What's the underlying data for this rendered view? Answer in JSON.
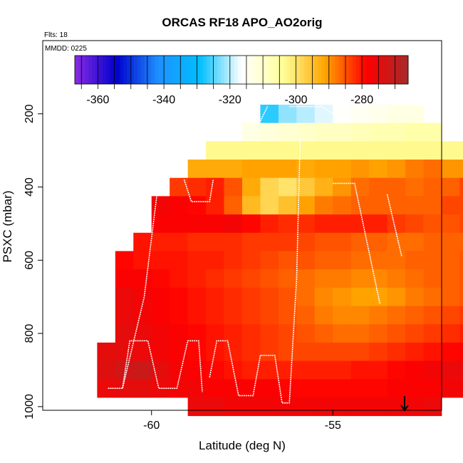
{
  "chart_data": {
    "type": "heatmap",
    "title": "ORCAS RF18 APO_AO2orig",
    "subtitle": "Flts: 18",
    "annotation": "MMDD: 0225",
    "xlabel": "Latitude (deg N)",
    "ylabel": "PSXC (mbar)",
    "xlim": [
      -63.0,
      -52.0
    ],
    "ylim": [
      1010,
      0
    ],
    "x_ticks": [
      -60,
      -55
    ],
    "x_tick_labels": [
      "-60",
      "-55"
    ],
    "y_ticks": [
      200,
      400,
      600,
      800,
      1000
    ],
    "y_tick_labels": [
      "200",
      "400",
      "600",
      "800",
      "1000"
    ],
    "colorbar": {
      "range": [
        -367,
        -266
      ],
      "ticks": [
        -360,
        -340,
        -320,
        -300,
        -280
      ],
      "tick_labels": [
        "-360",
        "-340",
        "-320",
        "-300",
        "-280"
      ],
      "placement": "top-inside",
      "colors": [
        "#8a2be2",
        "#0000cd",
        "#1e90ff",
        "#00bfff",
        "#ffffff",
        "#ffff99",
        "#ffa500",
        "#ff0000",
        "#a52a2a"
      ]
    },
    "grid": false,
    "cell_width_deg": 0.5,
    "cell_height_mbar": 50,
    "rows": [
      {
        "p": 200,
        "x0": -57.0,
        "values": [
          -327,
          -322,
          -320,
          -318,
          -316,
          -315,
          -314,
          -313,
          -313
        ]
      },
      {
        "p": 250,
        "x0": -57.5,
        "values": [
          -313,
          -312,
          -311,
          -310,
          -309,
          -309,
          -308,
          -307,
          -307,
          -306,
          -306
        ]
      },
      {
        "p": 300,
        "x0": -58.5,
        "values": [
          -303,
          -303,
          -303,
          -303,
          -303,
          -303,
          -303,
          -303,
          -303,
          -303,
          -303,
          -303,
          -303,
          -303,
          -303,
          -303
        ]
      },
      {
        "p": 350,
        "x0": -59.0,
        "values": [
          -292,
          -292,
          -292,
          -291,
          -291,
          -291,
          -292,
          -291,
          -291,
          -290,
          -291,
          -290,
          -288,
          -287,
          -290,
          -290,
          -290,
          -290,
          -290,
          -290,
          -290
        ]
      },
      {
        "p": 400,
        "x0": -59.5,
        "values": [
          -283,
          -282,
          -281,
          -285,
          -292,
          -298,
          -300,
          -296,
          -293,
          -290,
          -287,
          -286,
          -286,
          -287,
          -286,
          -286,
          -284,
          -283,
          -284,
          -284,
          -286,
          -287,
          -285,
          -283,
          -280,
          -282
        ]
      },
      {
        "p": 450,
        "x0": -60.0,
        "values": [
          -277,
          -278,
          -279,
          -281,
          -286,
          -294,
          -298,
          -295,
          -291,
          -288,
          -287,
          -286,
          -286,
          -286,
          -286,
          -286,
          -284,
          -284,
          -285,
          -286,
          -287,
          -286,
          -287,
          -287,
          -285,
          -284,
          -283
        ]
      },
      {
        "p": 500,
        "x0": -60.0,
        "values": [
          -278,
          -278,
          -278,
          -278,
          -277,
          -279,
          -281,
          -282,
          -282,
          -281,
          -281,
          -281,
          -281,
          -283,
          -284,
          -285,
          -285,
          -284,
          -284,
          -284,
          -284,
          -283,
          -282,
          -282,
          -281,
          -280,
          -279
        ]
      },
      {
        "p": 550,
        "x0": -60.5,
        "values": [
          -280,
          -281,
          -281,
          -282,
          -282,
          -282,
          -283,
          -283,
          -283,
          -284,
          -285,
          -285,
          -286,
          -286,
          -287,
          -287,
          -286,
          -286,
          -286,
          -286,
          -286,
          -285,
          -285,
          -284,
          -283,
          -282,
          -281,
          -279,
          -279
        ]
      },
      {
        "p": 600,
        "x0": -61.0,
        "values": [
          -279,
          -280,
          -280,
          -280,
          -281,
          -281,
          -282,
          -283,
          -284,
          -285,
          -285,
          -286,
          -286,
          -287,
          -287,
          -287,
          -286,
          -286,
          -286,
          -285,
          -285,
          -284,
          -283,
          -283,
          -282,
          -281,
          -280,
          -279,
          -279,
          -279,
          -279
        ]
      },
      {
        "p": 650,
        "x0": -61.0,
        "values": [
          -278,
          -278,
          -279,
          -280,
          -281,
          -282,
          -283,
          -284,
          -285,
          -286,
          -287,
          -288,
          -288,
          -289,
          -289,
          -288,
          -287,
          -286,
          -286,
          -285,
          -285,
          -284,
          -283,
          -282,
          -281,
          -280,
          -279,
          -279,
          -279,
          -278,
          -278
        ]
      },
      {
        "p": 700,
        "x0": -61.0,
        "values": [
          -276,
          -277,
          -278,
          -279,
          -280,
          -281,
          -282,
          -283,
          -284,
          -285,
          -287,
          -289,
          -290,
          -291,
          -291,
          -290,
          -288,
          -287,
          -286,
          -285,
          -284,
          -283,
          -282,
          -281,
          -280,
          -279,
          -278,
          -278,
          -277,
          -277
        ]
      },
      {
        "p": 750,
        "x0": -61.0,
        "values": [
          -276,
          -277,
          -278,
          -279,
          -280,
          -281,
          -282,
          -283,
          -284,
          -285,
          -286,
          -288,
          -289,
          -289,
          -288,
          -287,
          -286,
          -285,
          -284,
          -283,
          -282,
          -281,
          -280,
          -279,
          -279,
          -278,
          -277
        ]
      },
      {
        "p": 800,
        "x0": -61.0,
        "values": [
          -275,
          -276,
          -277,
          -278,
          -279,
          -280,
          -281,
          -282,
          -283,
          -284,
          -285,
          -286,
          -287,
          -287,
          -286,
          -285,
          -284,
          -283,
          -282,
          -281,
          -280,
          -279,
          -278,
          -277,
          -277
        ]
      },
      {
        "p": 850,
        "x0": -61.5,
        "values": [
          -275,
          -275,
          -276,
          -277,
          -278,
          -279,
          -280,
          -281,
          -282,
          -283,
          -284,
          -284,
          -284,
          -284,
          -284,
          -283,
          -282,
          -281,
          -280,
          -279,
          -278,
          -277,
          -276,
          -276
        ]
      },
      {
        "p": 900,
        "x0": -61.5,
        "values": [
          -274,
          -272,
          -271,
          -275,
          -277,
          -278,
          -279,
          -280,
          -281,
          -281,
          -281,
          -281,
          -281,
          -281,
          -280,
          -280,
          -279,
          -278,
          -277,
          -276,
          -276,
          -276,
          -276,
          -276
        ]
      },
      {
        "p": 950,
        "x0": -61.5,
        "values": [
          -276,
          -275,
          -275,
          -276,
          -277,
          -277,
          -278,
          -278,
          -278,
          -278,
          -279,
          -279,
          -279,
          -279,
          -279,
          -279,
          -278,
          -278,
          -278,
          -277,
          -277,
          -277,
          -277,
          -276
        ]
      },
      {
        "p": 1000,
        "x0": -59.0,
        "values": [
          -276,
          -276,
          -277,
          -277,
          -277,
          -277,
          -277,
          -277,
          -277,
          -277,
          -277,
          -277,
          -277,
          -276
        ]
      }
    ],
    "flight_tracks": [
      [
        [
          -61.2,
          950
        ],
        [
          -60.8,
          950
        ],
        [
          -60.2,
          700
        ],
        [
          -59.8,
          380
        ]
      ],
      [
        [
          -60.8,
          950
        ],
        [
          -60.6,
          820
        ],
        [
          -60.1,
          820
        ],
        [
          -59.8,
          950
        ],
        [
          -59.3,
          950
        ],
        [
          -59.0,
          820
        ],
        [
          -58.7,
          820
        ],
        [
          -58.6,
          960
        ]
      ],
      [
        [
          -58.4,
          920
        ],
        [
          -58.2,
          820
        ],
        [
          -57.9,
          820
        ],
        [
          -57.6,
          970
        ],
        [
          -57.2,
          970
        ],
        [
          -57.0,
          860
        ],
        [
          -56.6,
          860
        ],
        [
          -56.4,
          990
        ],
        [
          -56.2,
          990
        ],
        [
          -56.0,
          650
        ],
        [
          -55.9,
          260
        ]
      ],
      [
        [
          -59.1,
          380
        ],
        [
          -58.9,
          440
        ],
        [
          -58.4,
          440
        ],
        [
          -58.3,
          380
        ]
      ],
      [
        [
          -55.0,
          390
        ],
        [
          -54.4,
          390
        ],
        [
          -53.7,
          720
        ]
      ],
      [
        [
          -53.5,
          420
        ],
        [
          -53.1,
          590
        ]
      ],
      [
        [
          -57.0,
          220
        ],
        [
          -56.8,
          180
        ]
      ],
      [
        [
          -56.2,
          180
        ],
        [
          -55.3,
          180
        ],
        [
          -55.0,
          200
        ]
      ]
    ]
  }
}
